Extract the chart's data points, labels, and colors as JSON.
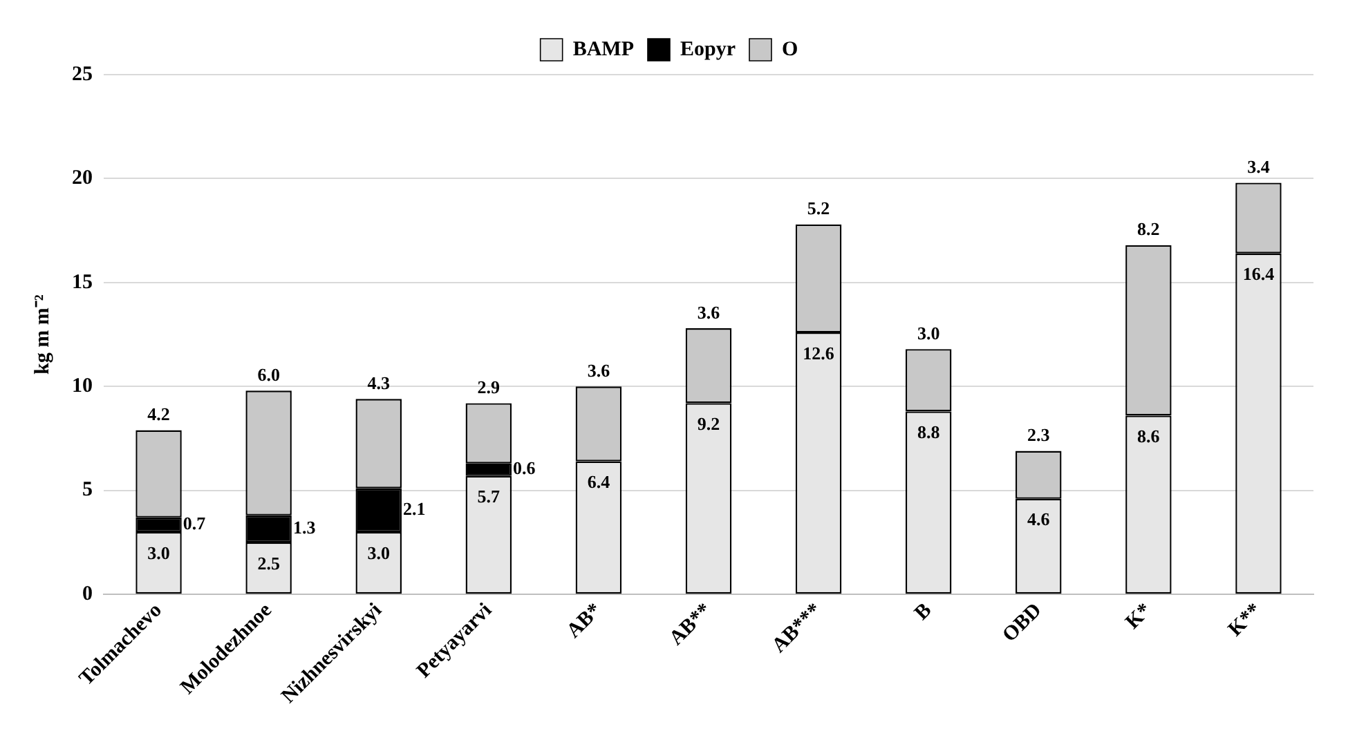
{
  "chart_data": {
    "type": "bar",
    "stacked": true,
    "ylabel": "kg m m⁻²",
    "categories": [
      "Tolmachevo",
      "Molodezhnoe",
      "Nizhnesvirskyi",
      "Petyayarvi",
      "AB*",
      "AB**",
      "AB***",
      "B",
      "OBD",
      "K*",
      "K**"
    ],
    "series": [
      {
        "name": "BAMP",
        "color": "#e6e6e6",
        "values": [
          3.0,
          2.5,
          3.0,
          5.7,
          6.4,
          9.2,
          12.6,
          8.8,
          4.6,
          8.6,
          16.4
        ],
        "value_labels": [
          "3.0",
          "2.5",
          "3.0",
          "5.7",
          "6.4",
          "9.2",
          "12.6",
          "8.8",
          "4.6",
          "8.6",
          "16.4"
        ]
      },
      {
        "name": "Eopyr",
        "color": "#000000",
        "values": [
          0.7,
          1.3,
          2.1,
          0.6,
          null,
          null,
          null,
          null,
          null,
          null,
          null
        ],
        "value_labels": [
          "0.7",
          "1.3",
          "2.1",
          "0.6",
          null,
          null,
          null,
          null,
          null,
          null,
          null
        ]
      },
      {
        "name": "O",
        "color": "#c8c8c8",
        "values": [
          4.2,
          6.0,
          4.3,
          2.9,
          3.6,
          3.6,
          5.2,
          3.0,
          2.3,
          8.2,
          3.4
        ],
        "value_labels": [
          "4.2",
          "6.0",
          "4.3",
          "2.9",
          "3.6",
          "3.6",
          "5.2",
          "3.0",
          "2.3",
          "8.2",
          "3.4"
        ]
      }
    ],
    "ylim": [
      0,
      25
    ],
    "yticks": [
      0,
      5,
      10,
      15,
      20,
      25
    ],
    "grid": "y",
    "legend": "top"
  }
}
